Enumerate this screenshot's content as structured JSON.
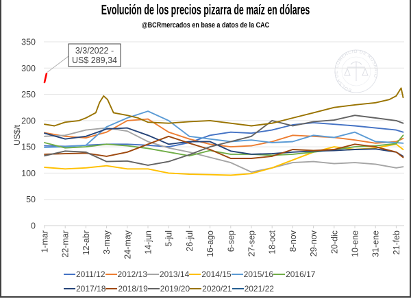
{
  "chart_data": {
    "type": "line",
    "title": "Evolución de los precios pizarra de maíz en dólares",
    "subtitle": "@BCRmercados en base a datos de la CAC",
    "xlabel": "",
    "ylabel": "US$/t",
    "ylim": [
      0,
      350
    ],
    "yticks": [
      "0",
      "50",
      "100",
      "150",
      "200",
      "250",
      "300",
      "350"
    ],
    "ytick_values": [
      0,
      50,
      100,
      150,
      200,
      250,
      300,
      350
    ],
    "x_unit": "days since 1-mar",
    "xlim_days": [
      0,
      364
    ],
    "xticks": [
      "1-mar",
      "22-mar",
      "12-abr",
      "3-may",
      "24-may",
      "14-jun",
      "5-jul",
      "26-jul",
      "16-ago",
      "6-sep",
      "27-sep",
      "18-oct",
      "8-nov",
      "29-nov",
      "20-dic",
      "10-ene",
      "31-ene",
      "21-feb"
    ],
    "xtick_step_days": 21,
    "grid": true,
    "legend_position": "bottom",
    "series": [
      {
        "name": "2011/12",
        "color": "#4472c4",
        "x": [
          0,
          21,
          42,
          63,
          84,
          105,
          126,
          147,
          168,
          189,
          210,
          231,
          252,
          273,
          294,
          315,
          336,
          357,
          364
        ],
        "values": [
          152,
          151,
          153,
          155,
          155,
          153,
          150,
          158,
          172,
          178,
          176,
          182,
          192,
          196,
          193,
          190,
          186,
          182,
          178
        ]
      },
      {
        "name": "2012/13",
        "color": "#ed7d31",
        "x": [
          0,
          21,
          42,
          63,
          84,
          105,
          126,
          147,
          168,
          189,
          210,
          231,
          252,
          273,
          294,
          315,
          336,
          357,
          364
        ],
        "values": [
          177,
          170,
          167,
          178,
          200,
          203,
          178,
          165,
          155,
          150,
          152,
          160,
          172,
          170,
          168,
          163,
          157,
          160,
          166
        ]
      },
      {
        "name": "2013/14",
        "color": "#a5a5a5",
        "x": [
          0,
          21,
          42,
          63,
          84,
          105,
          126,
          147,
          168,
          189,
          210,
          231,
          252,
          273,
          294,
          315,
          336,
          357,
          364
        ],
        "values": [
          170,
          172,
          182,
          186,
          180,
          160,
          148,
          140,
          130,
          120,
          102,
          110,
          120,
          122,
          118,
          120,
          117,
          110,
          112
        ]
      },
      {
        "name": "2014/15",
        "color": "#ffc000",
        "x": [
          0,
          21,
          42,
          63,
          84,
          105,
          126,
          147,
          168,
          189,
          210,
          231,
          252,
          273,
          294,
          315,
          336,
          357,
          364
        ],
        "values": [
          111,
          108,
          110,
          114,
          108,
          108,
          100,
          98,
          97,
          96,
          99,
          110,
          125,
          140,
          150,
          145,
          148,
          155,
          145
        ]
      },
      {
        "name": "2015/16",
        "color": "#5b9bd5",
        "x": [
          0,
          21,
          42,
          63,
          84,
          105,
          126,
          147,
          168,
          189,
          210,
          231,
          252,
          273,
          294,
          315,
          336,
          357,
          364
        ],
        "values": [
          149,
          150,
          153,
          188,
          205,
          218,
          200,
          170,
          165,
          160,
          163,
          158,
          160,
          172,
          168,
          178,
          160,
          158,
          157
        ]
      },
      {
        "name": "2016/17",
        "color": "#70ad47",
        "x": [
          0,
          21,
          42,
          63,
          84,
          105,
          126,
          147,
          168,
          189,
          210,
          231,
          252,
          273,
          294,
          315,
          336,
          357,
          364
        ],
        "values": [
          158,
          148,
          150,
          155,
          152,
          147,
          140,
          133,
          143,
          136,
          136,
          134,
          136,
          140,
          145,
          150,
          152,
          156,
          172
        ]
      },
      {
        "name": "2017/18",
        "color": "#264478",
        "x": [
          0,
          21,
          42,
          63,
          84,
          105,
          126,
          147,
          168,
          189,
          210,
          231,
          252,
          273,
          294,
          315,
          336,
          357,
          364
        ],
        "values": [
          176,
          165,
          170,
          184,
          186,
          172,
          155,
          160,
          160,
          142,
          136,
          137,
          140,
          142,
          143,
          145,
          146,
          140,
          132
        ]
      },
      {
        "name": "2018/19",
        "color": "#9e480e",
        "x": [
          0,
          21,
          42,
          63,
          84,
          105,
          126,
          147,
          168,
          189,
          210,
          231,
          252,
          273,
          294,
          315,
          336,
          357,
          364
        ],
        "values": [
          136,
          137,
          138,
          132,
          140,
          155,
          170,
          157,
          145,
          128,
          128,
          132,
          145,
          143,
          145,
          155,
          150,
          140,
          130
        ]
      },
      {
        "name": "2019/20",
        "color": "#636363",
        "x": [
          0,
          21,
          42,
          63,
          84,
          105,
          126,
          147,
          168,
          189,
          210,
          231,
          252,
          273,
          294,
          315,
          336,
          357,
          364
        ],
        "values": [
          133,
          142,
          140,
          122,
          123,
          115,
          122,
          135,
          150,
          160,
          170,
          200,
          190,
          198,
          201,
          210,
          205,
          200,
          195
        ]
      },
      {
        "name": "2020/21",
        "color": "#997300",
        "x": [
          0,
          10,
          21,
          35,
          42,
          52,
          56,
          60,
          64,
          70,
          84,
          95,
          105,
          126,
          147,
          168,
          189,
          210,
          231,
          252,
          273,
          294,
          315,
          336,
          350,
          357,
          362,
          364
        ],
        "values": [
          193,
          190,
          197,
          200,
          205,
          215,
          235,
          247,
          240,
          215,
          210,
          205,
          197,
          195,
          198,
          200,
          195,
          190,
          195,
          205,
          215,
          225,
          230,
          234,
          240,
          247,
          262,
          244
        ]
      },
      {
        "name": "2021/22",
        "color": "#255e91",
        "line_color": "#ff0000",
        "x": [
          0,
          2
        ],
        "values": [
          273,
          289.34
        ]
      }
    ],
    "annotations": [
      {
        "series": "2021/22",
        "x": 2,
        "y": 289.34,
        "line1": "3/3/2022 -",
        "line2": "US$ 289,34"
      }
    ]
  },
  "watermark": {
    "text": "BOLSA DE COMERCIO DE ROSARIO"
  }
}
